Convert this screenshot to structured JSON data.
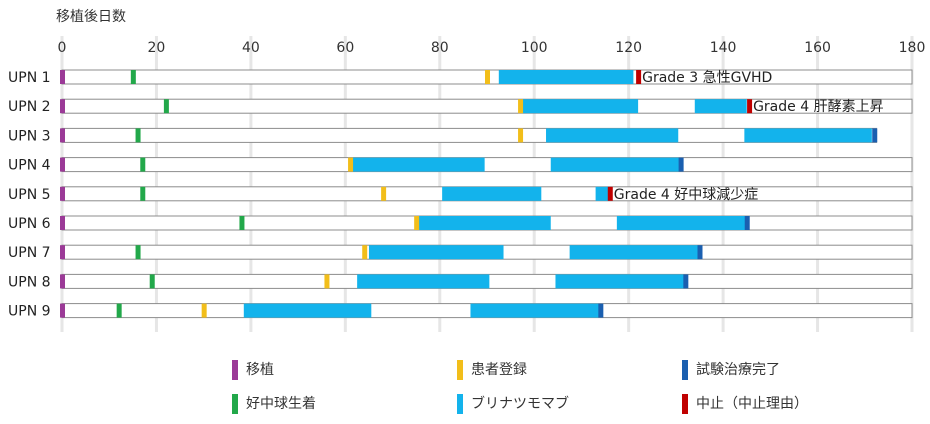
{
  "chart_data": {
    "type": "timeline",
    "title": "",
    "xlabel": "移植後日数",
    "xlim": [
      0,
      180
    ],
    "xticks": [
      0,
      20,
      40,
      60,
      80,
      100,
      120,
      140,
      160,
      180
    ],
    "colors": {
      "transplant": "#9b3a97",
      "engraftment": "#22a84a",
      "registration": "#f2be1a",
      "blinatumomab": "#13b3ec",
      "trial_complete": "#1a5fb0",
      "discontinuation": "#c00000",
      "bar_outline": "#8c8c8c",
      "grid": "#e6e6e6"
    },
    "legend": {
      "transplant": "移植",
      "engraftment": "好中球生着",
      "registration": "患者登録",
      "blinatumomab": "ブリナツモマブ",
      "trial_complete": "試験治療完了",
      "discontinuation": "中止（中止理由）"
    },
    "patients": [
      {
        "label": "UPN 1",
        "end": 180,
        "transplant": 0,
        "engraftment": 15,
        "registration": 90,
        "blinatumomab": [
          [
            92.5,
            121
          ]
        ],
        "trial_complete": null,
        "discontinuation": 122,
        "annotation": "Grade 3 急性GVHD"
      },
      {
        "label": "UPN 2",
        "end": 180,
        "transplant": 0,
        "engraftment": 22,
        "registration": 97,
        "blinatumomab": [
          [
            97.5,
            122
          ],
          [
            134,
            145
          ]
        ],
        "trial_complete": null,
        "discontinuation": 145.5,
        "annotation": "Grade 4 肝酵素上昇"
      },
      {
        "label": "UPN 3",
        "end": 172.5,
        "transplant": 0,
        "engraftment": 16,
        "registration": 97,
        "blinatumomab": [
          [
            102.5,
            130.5
          ],
          [
            144.5,
            171.5
          ]
        ],
        "trial_complete": 172,
        "discontinuation": null,
        "annotation": ""
      },
      {
        "label": "UPN 4",
        "end": 180,
        "transplant": 0,
        "engraftment": 17,
        "registration": 61,
        "blinatumomab": [
          [
            61.5,
            89.5
          ],
          [
            103.5,
            131
          ]
        ],
        "trial_complete": 131,
        "discontinuation": null,
        "annotation": ""
      },
      {
        "label": "UPN 5",
        "end": 180,
        "transplant": 0,
        "engraftment": 17,
        "registration": 68,
        "blinatumomab": [
          [
            80.5,
            101.5
          ],
          [
            113,
            116
          ]
        ],
        "trial_complete": null,
        "discontinuation": 116,
        "annotation": "Grade 4 好中球減少症"
      },
      {
        "label": "UPN 6",
        "end": 180,
        "transplant": 0,
        "engraftment": 38,
        "registration": 75,
        "blinatumomab": [
          [
            75.5,
            103.5
          ],
          [
            117.5,
            145
          ]
        ],
        "trial_complete": 145,
        "discontinuation": null,
        "annotation": ""
      },
      {
        "label": "UPN 7",
        "end": 180,
        "transplant": 0,
        "engraftment": 16,
        "registration": 64,
        "blinatumomab": [
          [
            65,
            93.5
          ],
          [
            107.5,
            135
          ]
        ],
        "trial_complete": 135,
        "discontinuation": null,
        "annotation": ""
      },
      {
        "label": "UPN 8",
        "end": 180,
        "transplant": 0,
        "engraftment": 19,
        "registration": 56,
        "blinatumomab": [
          [
            62.5,
            90.5
          ],
          [
            104.5,
            132
          ]
        ],
        "trial_complete": 132,
        "discontinuation": null,
        "annotation": ""
      },
      {
        "label": "UPN 9",
        "end": 180,
        "transplant": 0,
        "engraftment": 12,
        "registration": 30,
        "blinatumomab": [
          [
            38.5,
            65.5
          ],
          [
            86.5,
            114
          ]
        ],
        "trial_complete": 114,
        "discontinuation": null,
        "annotation": ""
      }
    ]
  }
}
